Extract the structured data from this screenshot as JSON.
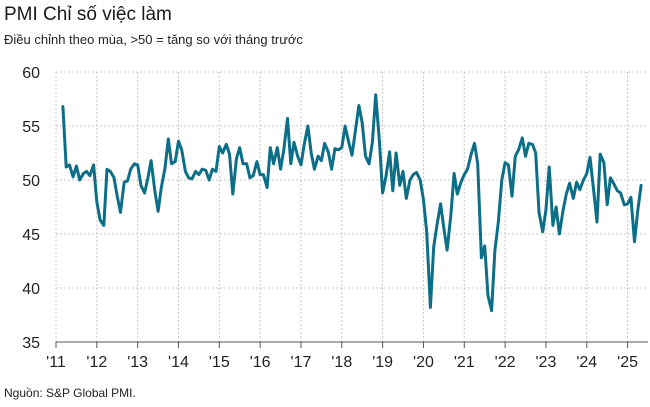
{
  "title": "PMI Chỉ số việc làm",
  "subtitle": "Điều chỉnh theo mùa, >50 = tăng so với tháng trước",
  "source": "Nguồn: S&P Global PMI.",
  "colors": {
    "line": "#0d6e87",
    "grid": "#c8c8c8",
    "axis": "#555555"
  },
  "chart_data": {
    "type": "line",
    "title": "PMI Chỉ số việc làm",
    "subtitle": "Điều chỉnh theo mùa, >50 = tăng so với tháng trước",
    "ylim": [
      35,
      60
    ],
    "yticks": [
      35,
      40,
      45,
      50,
      55,
      60
    ],
    "xlim": [
      2011.0,
      2025.5
    ],
    "xticks": [
      {
        "x": 2011,
        "label": "'11"
      },
      {
        "x": 2012,
        "label": "'12"
      },
      {
        "x": 2013,
        "label": "'13"
      },
      {
        "x": 2014,
        "label": "'14"
      },
      {
        "x": 2015,
        "label": "'15"
      },
      {
        "x": 2016,
        "label": "'16"
      },
      {
        "x": 2017,
        "label": "'17"
      },
      {
        "x": 2018,
        "label": "'18"
      },
      {
        "x": 2019,
        "label": "'19"
      },
      {
        "x": 2020,
        "label": "'20"
      },
      {
        "x": 2021,
        "label": "'21"
      },
      {
        "x": 2022,
        "label": "'22"
      },
      {
        "x": 2023,
        "label": "'23"
      },
      {
        "x": 2024,
        "label": "'24"
      },
      {
        "x": 2025,
        "label": "'25"
      }
    ],
    "grid": true,
    "series": [
      {
        "points": [
          [
            2011.17,
            56.8
          ],
          [
            2011.25,
            51.2
          ],
          [
            2011.33,
            51.4
          ],
          [
            2011.42,
            50.3
          ],
          [
            2011.5,
            51.3
          ],
          [
            2011.58,
            50.0
          ],
          [
            2011.67,
            50.6
          ],
          [
            2011.75,
            50.8
          ],
          [
            2011.83,
            50.4
          ],
          [
            2011.92,
            51.4
          ],
          [
            2012.0,
            48.0
          ],
          [
            2012.08,
            46.3
          ],
          [
            2012.17,
            45.8
          ],
          [
            2012.25,
            51.0
          ],
          [
            2012.33,
            50.8
          ],
          [
            2012.42,
            50.2
          ],
          [
            2012.5,
            48.5
          ],
          [
            2012.58,
            47.0
          ],
          [
            2012.67,
            49.8
          ],
          [
            2012.75,
            49.9
          ],
          [
            2012.83,
            51.0
          ],
          [
            2012.92,
            51.5
          ],
          [
            2013.0,
            51.4
          ],
          [
            2013.08,
            49.5
          ],
          [
            2013.17,
            48.8
          ],
          [
            2013.25,
            50.2
          ],
          [
            2013.33,
            51.8
          ],
          [
            2013.42,
            49.0
          ],
          [
            2013.5,
            47.1
          ],
          [
            2013.58,
            49.3
          ],
          [
            2013.67,
            51.1
          ],
          [
            2013.75,
            53.8
          ],
          [
            2013.83,
            51.5
          ],
          [
            2013.92,
            51.7
          ],
          [
            2014.0,
            53.6
          ],
          [
            2014.08,
            52.8
          ],
          [
            2014.17,
            50.8
          ],
          [
            2014.25,
            50.2
          ],
          [
            2014.33,
            50.1
          ],
          [
            2014.42,
            50.8
          ],
          [
            2014.5,
            50.5
          ],
          [
            2014.58,
            51.0
          ],
          [
            2014.67,
            50.9
          ],
          [
            2014.75,
            50.0
          ],
          [
            2014.83,
            51.0
          ],
          [
            2014.92,
            50.8
          ],
          [
            2015.0,
            53.1
          ],
          [
            2015.08,
            52.5
          ],
          [
            2015.17,
            53.3
          ],
          [
            2015.25,
            52.4
          ],
          [
            2015.33,
            48.7
          ],
          [
            2015.42,
            52.0
          ],
          [
            2015.5,
            53.0
          ],
          [
            2015.58,
            51.5
          ],
          [
            2015.67,
            51.5
          ],
          [
            2015.75,
            50.2
          ],
          [
            2015.83,
            50.4
          ],
          [
            2015.92,
            51.7
          ],
          [
            2016.0,
            50.5
          ],
          [
            2016.08,
            50.5
          ],
          [
            2016.17,
            49.3
          ],
          [
            2016.25,
            53.0
          ],
          [
            2016.33,
            51.5
          ],
          [
            2016.42,
            53.0
          ],
          [
            2016.5,
            51.0
          ],
          [
            2016.58,
            52.8
          ],
          [
            2016.67,
            55.7
          ],
          [
            2016.75,
            51.5
          ],
          [
            2016.83,
            53.5
          ],
          [
            2016.92,
            52.2
          ],
          [
            2017.0,
            51.4
          ],
          [
            2017.08,
            53.3
          ],
          [
            2017.17,
            55.0
          ],
          [
            2017.25,
            52.5
          ],
          [
            2017.33,
            51.0
          ],
          [
            2017.42,
            52.2
          ],
          [
            2017.5,
            51.8
          ],
          [
            2017.58,
            53.4
          ],
          [
            2017.67,
            52.6
          ],
          [
            2017.75,
            51.0
          ],
          [
            2017.83,
            52.9
          ],
          [
            2017.92,
            52.8
          ],
          [
            2018.0,
            53.0
          ],
          [
            2018.08,
            55.0
          ],
          [
            2018.17,
            53.5
          ],
          [
            2018.25,
            52.3
          ],
          [
            2018.33,
            54.5
          ],
          [
            2018.42,
            56.9
          ],
          [
            2018.5,
            55.3
          ],
          [
            2018.58,
            52.2
          ],
          [
            2018.67,
            51.5
          ],
          [
            2018.75,
            53.5
          ],
          [
            2018.83,
            57.9
          ],
          [
            2018.92,
            53.6
          ],
          [
            2019.0,
            48.8
          ],
          [
            2019.08,
            50.3
          ],
          [
            2019.17,
            52.6
          ],
          [
            2019.25,
            49.0
          ],
          [
            2019.33,
            52.5
          ],
          [
            2019.42,
            49.5
          ],
          [
            2019.5,
            50.8
          ],
          [
            2019.58,
            48.3
          ],
          [
            2019.67,
            50.0
          ],
          [
            2019.75,
            50.5
          ],
          [
            2019.83,
            50.7
          ],
          [
            2019.92,
            50.0
          ],
          [
            2020.0,
            48.2
          ],
          [
            2020.08,
            45.2
          ],
          [
            2020.17,
            38.2
          ],
          [
            2020.25,
            43.8
          ],
          [
            2020.33,
            45.8
          ],
          [
            2020.42,
            47.8
          ],
          [
            2020.5,
            45.5
          ],
          [
            2020.58,
            43.5
          ],
          [
            2020.67,
            46.7
          ],
          [
            2020.75,
            50.6
          ],
          [
            2020.83,
            48.7
          ],
          [
            2020.92,
            49.8
          ],
          [
            2021.0,
            50.5
          ],
          [
            2021.08,
            51.0
          ],
          [
            2021.17,
            52.4
          ],
          [
            2021.25,
            53.4
          ],
          [
            2021.33,
            51.5
          ],
          [
            2021.42,
            42.8
          ],
          [
            2021.5,
            43.9
          ],
          [
            2021.58,
            39.3
          ],
          [
            2021.67,
            37.9
          ],
          [
            2021.75,
            43.5
          ],
          [
            2021.83,
            46.0
          ],
          [
            2021.92,
            50.0
          ],
          [
            2022.0,
            51.6
          ],
          [
            2022.08,
            51.4
          ],
          [
            2022.17,
            48.5
          ],
          [
            2022.25,
            52.2
          ],
          [
            2022.33,
            52.8
          ],
          [
            2022.42,
            53.9
          ],
          [
            2022.5,
            52.2
          ],
          [
            2022.58,
            53.4
          ],
          [
            2022.67,
            53.3
          ],
          [
            2022.75,
            52.5
          ],
          [
            2022.83,
            47.0
          ],
          [
            2022.92,
            45.2
          ],
          [
            2023.0,
            47.2
          ],
          [
            2023.08,
            51.2
          ],
          [
            2023.17,
            45.8
          ],
          [
            2023.25,
            47.5
          ],
          [
            2023.33,
            45.0
          ],
          [
            2023.42,
            47.2
          ],
          [
            2023.5,
            48.7
          ],
          [
            2023.58,
            49.7
          ],
          [
            2023.67,
            48.3
          ],
          [
            2023.75,
            49.8
          ],
          [
            2023.83,
            49.1
          ],
          [
            2023.92,
            50.0
          ],
          [
            2024.0,
            50.6
          ],
          [
            2024.08,
            52.1
          ],
          [
            2024.17,
            49.0
          ],
          [
            2024.25,
            46.1
          ],
          [
            2024.33,
            52.4
          ],
          [
            2024.42,
            51.6
          ],
          [
            2024.5,
            47.7
          ],
          [
            2024.58,
            50.2
          ],
          [
            2024.67,
            49.6
          ],
          [
            2024.75,
            49.0
          ],
          [
            2024.83,
            48.8
          ],
          [
            2024.92,
            47.7
          ],
          [
            2025.0,
            47.8
          ],
          [
            2025.08,
            48.4
          ],
          [
            2025.17,
            44.3
          ],
          [
            2025.25,
            47.2
          ],
          [
            2025.33,
            49.5
          ]
        ]
      }
    ]
  }
}
